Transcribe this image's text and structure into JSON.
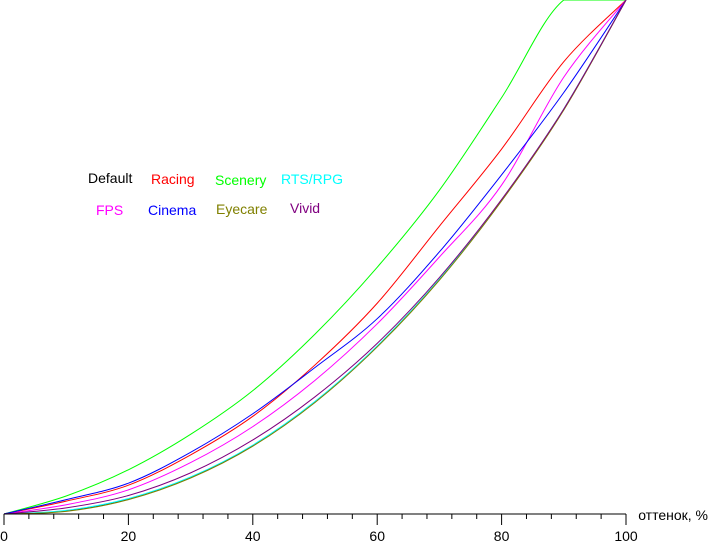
{
  "chart_data": {
    "type": "line",
    "title": "",
    "xlabel": "оттенок, %",
    "ylabel": "",
    "xlim": [
      0,
      100
    ],
    "ylim": [
      0,
      100
    ],
    "xticks": [
      0,
      20,
      40,
      60,
      80,
      100
    ],
    "grid": false,
    "legend_placement": "upper-left, two rows",
    "x": [
      0,
      10,
      20,
      30,
      40,
      50,
      60,
      70,
      80,
      90,
      100
    ],
    "series": [
      {
        "name": "Default",
        "color": "#000000",
        "values": [
          0,
          0.6,
          2.9,
          7.1,
          13.3,
          21.8,
          32.6,
          45.6,
          61.0,
          78.7,
          100
        ]
      },
      {
        "name": "Racing",
        "color": "#ff0000",
        "values": [
          0,
          2.5,
          5.6,
          11.5,
          19,
          29,
          41,
          56,
          71,
          88,
          100
        ]
      },
      {
        "name": "Scenery",
        "color": "#00ff00",
        "values": [
          0,
          3.5,
          8.6,
          15.5,
          24,
          35,
          48,
          63,
          81,
          100,
          100
        ]
      },
      {
        "name": "RTS/RPG",
        "color": "#00ffff",
        "values": [
          0,
          0.7,
          3.0,
          7.2,
          13.4,
          21.9,
          32.7,
          45.7,
          61.1,
          78.8,
          100
        ]
      },
      {
        "name": "FPS",
        "color": "#ff00ff",
        "values": [
          0,
          1.8,
          4.7,
          10,
          17,
          26,
          37,
          50,
          64,
          85,
          100
        ]
      },
      {
        "name": "Cinema",
        "color": "#0000ff",
        "values": [
          0,
          2.8,
          6.0,
          12,
          19.5,
          28.5,
          38,
          51,
          66,
          82,
          100
        ]
      },
      {
        "name": "Eyecare",
        "color": "#808000",
        "values": [
          0,
          0.5,
          2.8,
          7.0,
          13.2,
          21.7,
          32.5,
          45.5,
          60.9,
          78.6,
          100
        ]
      },
      {
        "name": "Vivid",
        "color": "#800080",
        "values": [
          0,
          1.2,
          3.6,
          8.0,
          14.4,
          22.8,
          33.2,
          46.0,
          61.2,
          78.8,
          100
        ]
      }
    ]
  }
}
